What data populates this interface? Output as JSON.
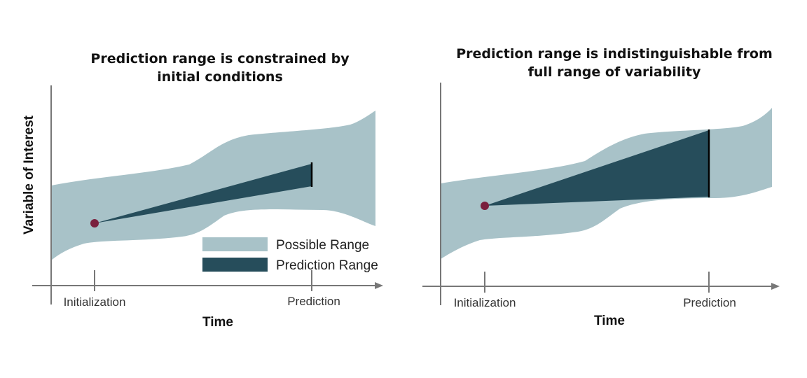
{
  "colors": {
    "possible": "#a8c2c8",
    "prediction": "#264d5b",
    "init_point": "#7a1f3d",
    "axis": "#777777"
  },
  "left_panel": {
    "title_lines": [
      "Prediction range is constrained by",
      "initial conditions"
    ],
    "y_axis_label": "Variable of Interest",
    "x_axis_label": "Time",
    "tick_labels": [
      "Initialization",
      "Prediction"
    ]
  },
  "right_panel": {
    "title_lines": [
      "Prediction range is indistinguishable from",
      "full range of variability"
    ],
    "x_axis_label": "Time",
    "tick_labels": [
      "Initialization",
      "Prediction"
    ]
  },
  "legend": {
    "items": [
      {
        "label": "Possible Range",
        "color": "#a8c2c8"
      },
      {
        "label": "Prediction Range",
        "color": "#264d5b"
      }
    ]
  }
}
